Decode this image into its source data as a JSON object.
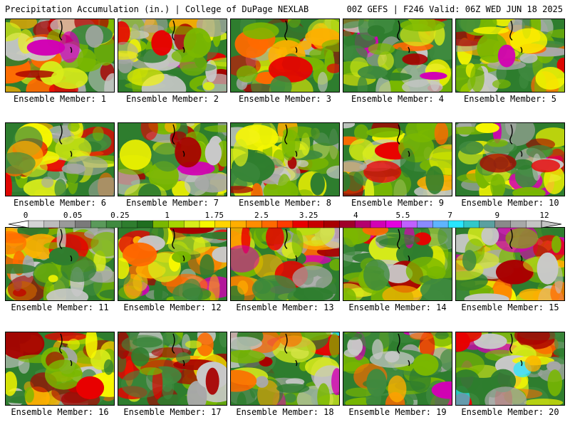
{
  "header": {
    "title_left": "Precipitation Accumulation (in.) | College of DuPage NEXLAB",
    "title_right": "00Z GEFS | F246 Valid: 06Z WED JUN 18 2025"
  },
  "members": [
    {
      "label": "Ensemble Member: 1",
      "intensity": 0.55,
      "seed": 11
    },
    {
      "label": "Ensemble Member: 2",
      "intensity": 0.6,
      "seed": 23
    },
    {
      "label": "Ensemble Member: 3",
      "intensity": 0.5,
      "seed": 37
    },
    {
      "label": "Ensemble Member: 4",
      "intensity": 0.6,
      "seed": 41
    },
    {
      "label": "Ensemble Member: 5",
      "intensity": 0.55,
      "seed": 53
    },
    {
      "label": "Ensemble Member: 6",
      "intensity": 0.4,
      "seed": 67
    },
    {
      "label": "Ensemble Member: 7",
      "intensity": 0.6,
      "seed": 71
    },
    {
      "label": "Ensemble Member: 8",
      "intensity": 0.55,
      "seed": 83
    },
    {
      "label": "Ensemble Member: 9",
      "intensity": 0.45,
      "seed": 97
    },
    {
      "label": "Ensemble Member: 10",
      "intensity": 0.65,
      "seed": 101
    },
    {
      "label": "Ensemble Member: 11",
      "intensity": 0.55,
      "seed": 113
    },
    {
      "label": "Ensemble Member: 12",
      "intensity": 0.55,
      "seed": 127
    },
    {
      "label": "Ensemble Member: 13",
      "intensity": 0.6,
      "seed": 131
    },
    {
      "label": "Ensemble Member: 14",
      "intensity": 0.55,
      "seed": 149
    },
    {
      "label": "Ensemble Member: 15",
      "intensity": 0.55,
      "seed": 151
    },
    {
      "label": "Ensemble Member: 16",
      "intensity": 0.5,
      "seed": 163
    },
    {
      "label": "Ensemble Member: 17",
      "intensity": 0.5,
      "seed": 173
    },
    {
      "label": "Ensemble Member: 18",
      "intensity": 0.65,
      "seed": 181
    },
    {
      "label": "Ensemble Member: 19",
      "intensity": 0.6,
      "seed": 191
    },
    {
      "label": "Ensemble Member: 20",
      "intensity": 0.7,
      "seed": 197
    }
  ],
  "colorbar": {
    "labels": [
      "0",
      "0.05",
      "0.25",
      "1",
      "1.75",
      "2.5",
      "3.25",
      "4",
      "5.5",
      "7",
      "9",
      "12"
    ],
    "colors": [
      "#d4d4d4",
      "#bcbcbc",
      "#9a9a9a",
      "#7a7a7a",
      "#5a9a5a",
      "#3f8a3f",
      "#2e7d2e",
      "#1f6e1f",
      "#7ab800",
      "#a6d400",
      "#d8ec1a",
      "#f7f700",
      "#ffd400",
      "#ffae00",
      "#ff8c00",
      "#ff6a00",
      "#ff3c00",
      "#e80000",
      "#c80000",
      "#a80000",
      "#a0002a",
      "#b4006e",
      "#d200b4",
      "#e400e0",
      "#c060ff",
      "#8a8aff",
      "#5fb4ff",
      "#28e6ff",
      "#32c8c8",
      "#5aa0a0",
      "#8a8a8a",
      "#a8a8a8",
      "#c4c4c4"
    ]
  }
}
